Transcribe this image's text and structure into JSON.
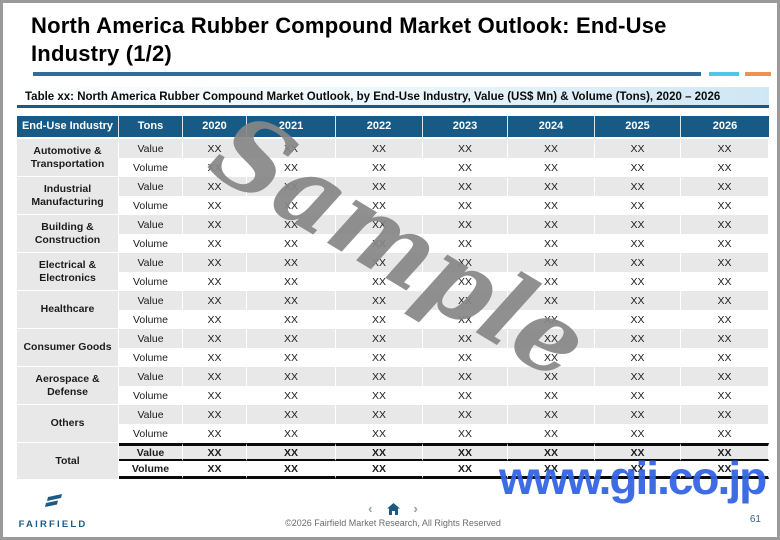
{
  "header": {
    "title": "North America Rubber Compound Market Outlook: End-Use Industry (1/2)"
  },
  "caption": "Table xx: North America Rubber Compound Market Outlook, by End-Use Industry, Value (US$ Mn) & Volume (Tons), 2020 – 2026",
  "table": {
    "columns": [
      "End-Use Industry",
      "Tons",
      "2020",
      "2021",
      "2022",
      "2023",
      "2024",
      "2025",
      "2026"
    ],
    "groups": [
      {
        "label": "Automotive & Transportation",
        "total": false,
        "rows": [
          {
            "metric": "Value",
            "values": [
              "XX",
              "XX",
              "XX",
              "XX",
              "XX",
              "XX",
              "XX"
            ]
          },
          {
            "metric": "Volume",
            "values": [
              "XX",
              "XX",
              "XX",
              "XX",
              "XX",
              "XX",
              "XX"
            ]
          }
        ]
      },
      {
        "label": "Industrial Manufacturing",
        "total": false,
        "rows": [
          {
            "metric": "Value",
            "values": [
              "XX",
              "XX",
              "XX",
              "XX",
              "XX",
              "XX",
              "XX"
            ]
          },
          {
            "metric": "Volume",
            "values": [
              "XX",
              "XX",
              "XX",
              "XX",
              "XX",
              "XX",
              "XX"
            ]
          }
        ]
      },
      {
        "label": "Building & Construction",
        "total": false,
        "rows": [
          {
            "metric": "Value",
            "values": [
              "XX",
              "XX",
              "XX",
              "XX",
              "XX",
              "XX",
              "XX"
            ]
          },
          {
            "metric": "Volume",
            "values": [
              "XX",
              "XX",
              "XX",
              "XX",
              "XX",
              "XX",
              "XX"
            ]
          }
        ]
      },
      {
        "label": "Electrical & Electronics",
        "total": false,
        "rows": [
          {
            "metric": "Value",
            "values": [
              "XX",
              "XX",
              "XX",
              "XX",
              "XX",
              "XX",
              "XX"
            ]
          },
          {
            "metric": "Volume",
            "values": [
              "XX",
              "XX",
              "XX",
              "XX",
              "XX",
              "XX",
              "XX"
            ]
          }
        ]
      },
      {
        "label": "Healthcare",
        "total": false,
        "rows": [
          {
            "metric": "Value",
            "values": [
              "XX",
              "XX",
              "XX",
              "XX",
              "XX",
              "XX",
              "XX"
            ]
          },
          {
            "metric": "Volume",
            "values": [
              "XX",
              "XX",
              "XX",
              "XX",
              "XX",
              "XX",
              "XX"
            ]
          }
        ]
      },
      {
        "label": "Consumer Goods",
        "total": false,
        "rows": [
          {
            "metric": "Value",
            "values": [
              "XX",
              "XX",
              "XX",
              "XX",
              "XX",
              "XX",
              "XX"
            ]
          },
          {
            "metric": "Volume",
            "values": [
              "XX",
              "XX",
              "XX",
              "XX",
              "XX",
              "XX",
              "XX"
            ]
          }
        ]
      },
      {
        "label": "Aerospace & Defense",
        "total": false,
        "rows": [
          {
            "metric": "Value",
            "values": [
              "XX",
              "XX",
              "XX",
              "XX",
              "XX",
              "XX",
              "XX"
            ]
          },
          {
            "metric": "Volume",
            "values": [
              "XX",
              "XX",
              "XX",
              "XX",
              "XX",
              "XX",
              "XX"
            ]
          }
        ]
      },
      {
        "label": "Others",
        "total": false,
        "rows": [
          {
            "metric": "Value",
            "values": [
              "XX",
              "XX",
              "XX",
              "XX",
              "XX",
              "XX",
              "XX"
            ]
          },
          {
            "metric": "Volume",
            "values": [
              "XX",
              "XX",
              "XX",
              "XX",
              "XX",
              "XX",
              "XX"
            ]
          }
        ]
      },
      {
        "label": "Total",
        "total": true,
        "rows": [
          {
            "metric": "Value",
            "values": [
              "XX",
              "XX",
              "XX",
              "XX",
              "XX",
              "XX",
              "XX"
            ]
          },
          {
            "metric": "Volume",
            "values": [
              "XX",
              "XX",
              "XX",
              "XX",
              "XX",
              "XX",
              "XX"
            ]
          }
        ]
      }
    ]
  },
  "watermarks": {
    "diagonal": "Sample",
    "site": "www.gii.co.jp"
  },
  "footer": {
    "logo_text": "FAIRFIELD",
    "nav": {
      "prev": "‹",
      "next": "›"
    },
    "copyright": "©2026 Fairfield Market Research, All Rights Reserved",
    "page_number": "61"
  },
  "colors": {
    "header_bg": "#175a86",
    "row_alt": "#e8e8e8",
    "accent_blue": "#2e6da0",
    "accent_cyan": "#4ec7ea",
    "accent_orange": "#f09150",
    "brand_blue": "#1c5a84",
    "watermark_gray": "#878787",
    "watermark_blue": "#3465e4"
  }
}
